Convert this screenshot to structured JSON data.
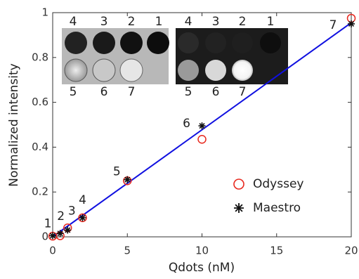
{
  "chart_data": {
    "type": "scatter",
    "x_label": "Qdots (nM)",
    "y_label": "Normalized intensity",
    "xlim": [
      0,
      20
    ],
    "xticks": [
      0,
      5,
      10,
      15,
      20
    ],
    "ylim": [
      0,
      1
    ],
    "yticks": [
      0,
      0.2,
      0.4,
      0.6,
      0.8,
      1
    ],
    "legend": "lower right",
    "series": [
      {
        "name": "Odyssey",
        "color": "#e8281e",
        "marker": "circle",
        "x": [
          0,
          0.5,
          1,
          2,
          5,
          10,
          20
        ],
        "values": [
          0.003,
          0.005,
          0.04,
          0.085,
          0.25,
          0.435,
          0.975
        ]
      },
      {
        "name": "Maestro",
        "color": "#111111",
        "marker": "asterisk",
        "x": [
          0,
          0.5,
          1,
          2,
          5,
          10,
          20
        ],
        "values": [
          0.005,
          0.015,
          0.03,
          0.085,
          0.255,
          0.495,
          0.95
        ]
      }
    ],
    "fit": {
      "color": "#1010e0",
      "x": [
        0,
        20
      ],
      "values": [
        0,
        0.955
      ]
    },
    "point_labels": [
      "1",
      "2",
      "3",
      "4",
      "5",
      "6",
      "7"
    ],
    "insets": [
      {
        "label_color": "#e8281e",
        "top_labels": [
          "4",
          "3",
          "2",
          "1"
        ],
        "bottom_labels": [
          "5",
          "6",
          "7"
        ]
      },
      {
        "label_color": "#111111",
        "top_labels": [
          "4",
          "3",
          "2",
          "1"
        ],
        "bottom_labels": [
          "5",
          "6",
          "7"
        ]
      }
    ]
  }
}
